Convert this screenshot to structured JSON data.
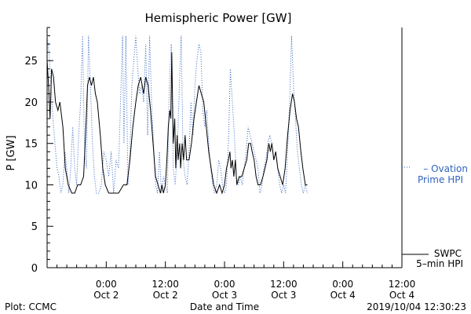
{
  "chart_data": {
    "type": "line",
    "title": "Hemispheric Power [GW]",
    "ylabel": "P [GW]",
    "xlabel": "Date and Time",
    "ylim": [
      0,
      29
    ],
    "yticks": [
      0,
      5,
      10,
      15,
      20,
      25
    ],
    "x_unit": "hours since 2019/10/01 12:00 UT",
    "xlim": [
      0,
      72
    ],
    "xticks": [
      {
        "x": 12,
        "line1": "0:00",
        "line2": "Oct 2"
      },
      {
        "x": 24,
        "line1": "12:00",
        "line2": "Oct 2"
      },
      {
        "x": 36,
        "line1": "0:00",
        "line2": "Oct 3"
      },
      {
        "x": 48,
        "line1": "12:00",
        "line2": "Oct 3"
      },
      {
        "x": 60,
        "line1": "0:00",
        "line2": "Oct 4"
      },
      {
        "x": 72,
        "line1": "12:00",
        "line2": "Oct 4"
      }
    ],
    "grid": false,
    "series": [
      {
        "name": "SWPC 5-min HPI",
        "label_line1": "SWPC",
        "label_line2": "5–min HPI",
        "color": "#000000",
        "style": "solid",
        "points": [
          [
            0,
            25
          ],
          [
            0.3,
            22
          ],
          [
            0.6,
            18
          ],
          [
            0.9,
            24
          ],
          [
            1.3,
            23
          ],
          [
            1.7,
            20
          ],
          [
            2.2,
            19
          ],
          [
            2.6,
            20
          ],
          [
            3.2,
            17
          ],
          [
            3.7,
            12
          ],
          [
            4.3,
            10
          ],
          [
            5.0,
            9
          ],
          [
            5.6,
            9
          ],
          [
            6.2,
            10
          ],
          [
            6.8,
            10
          ],
          [
            7.4,
            11
          ],
          [
            7.8,
            16
          ],
          [
            8.2,
            22
          ],
          [
            8.6,
            23
          ],
          [
            9.0,
            22
          ],
          [
            9.4,
            23
          ],
          [
            9.8,
            21
          ],
          [
            10.2,
            20
          ],
          [
            10.8,
            16
          ],
          [
            11.3,
            12
          ],
          [
            11.8,
            10
          ],
          [
            12.5,
            9
          ],
          [
            13.5,
            9
          ],
          [
            14.5,
            9
          ],
          [
            15.5,
            10
          ],
          [
            16.2,
            10
          ],
          [
            16.8,
            13
          ],
          [
            17.4,
            17
          ],
          [
            18.0,
            20
          ],
          [
            18.5,
            22
          ],
          [
            19.0,
            23
          ],
          [
            19.6,
            21
          ],
          [
            20.0,
            23
          ],
          [
            20.5,
            22
          ],
          [
            21.0,
            19
          ],
          [
            21.5,
            15
          ],
          [
            22.0,
            11
          ],
          [
            22.5,
            10
          ],
          [
            23.0,
            9
          ],
          [
            23.3,
            10
          ],
          [
            23.6,
            9
          ],
          [
            24.0,
            10
          ],
          [
            24.3,
            13
          ],
          [
            24.6,
            17
          ],
          [
            24.9,
            19
          ],
          [
            25.1,
            18
          ],
          [
            25.3,
            26
          ],
          [
            25.6,
            15
          ],
          [
            25.9,
            18
          ],
          [
            26.1,
            12
          ],
          [
            26.4,
            16
          ],
          [
            26.6,
            13
          ],
          [
            26.9,
            15
          ],
          [
            27.1,
            12
          ],
          [
            27.4,
            15
          ],
          [
            27.7,
            13
          ],
          [
            28.0,
            16
          ],
          [
            28.3,
            13
          ],
          [
            28.8,
            13
          ],
          [
            29.3,
            15
          ],
          [
            29.8,
            18
          ],
          [
            30.3,
            20
          ],
          [
            30.8,
            22
          ],
          [
            31.3,
            21
          ],
          [
            31.8,
            20
          ],
          [
            32.3,
            17
          ],
          [
            32.8,
            14
          ],
          [
            33.3,
            12
          ],
          [
            33.8,
            10
          ],
          [
            34.4,
            9
          ],
          [
            35.0,
            10
          ],
          [
            35.5,
            9
          ],
          [
            36.0,
            10
          ],
          [
            36.4,
            12
          ],
          [
            36.8,
            13
          ],
          [
            37.1,
            14
          ],
          [
            37.3,
            12
          ],
          [
            37.6,
            13
          ],
          [
            37.9,
            11
          ],
          [
            38.2,
            13
          ],
          [
            38.5,
            10
          ],
          [
            39.0,
            11
          ],
          [
            39.5,
            11
          ],
          [
            40.0,
            12
          ],
          [
            40.5,
            13
          ],
          [
            40.9,
            15
          ],
          [
            41.3,
            15
          ],
          [
            41.6,
            14
          ],
          [
            42.0,
            13
          ],
          [
            42.4,
            11
          ],
          [
            42.8,
            10
          ],
          [
            43.3,
            10
          ],
          [
            43.8,
            11
          ],
          [
            44.2,
            12
          ],
          [
            44.6,
            13
          ],
          [
            45.0,
            15
          ],
          [
            45.3,
            14
          ],
          [
            45.6,
            15
          ],
          [
            46.0,
            13
          ],
          [
            46.4,
            14
          ],
          [
            46.8,
            12
          ],
          [
            47.3,
            11
          ],
          [
            47.8,
            10
          ],
          [
            48.3,
            12
          ],
          [
            48.8,
            16
          ],
          [
            49.3,
            19
          ],
          [
            49.8,
            21
          ],
          [
            50.2,
            20
          ],
          [
            50.6,
            18
          ],
          [
            51.0,
            17
          ],
          [
            51.5,
            14
          ],
          [
            51.9,
            12
          ],
          [
            52.4,
            10
          ],
          [
            52.8,
            10
          ]
        ]
      },
      {
        "name": "Ovation Prime HPI",
        "label_line1": "– Ovation",
        "label_line2": "Prime HPI",
        "color": "#2f63c0",
        "style": "dotted",
        "points": [
          [
            0,
            28
          ],
          [
            0.4,
            26
          ],
          [
            0.8,
            22
          ],
          [
            1.2,
            18
          ],
          [
            1.6,
            15
          ],
          [
            2.0,
            12
          ],
          [
            2.4,
            11
          ],
          [
            2.8,
            9
          ],
          [
            3.2,
            10
          ],
          [
            3.6,
            14
          ],
          [
            4.0,
            12
          ],
          [
            4.4,
            9
          ],
          [
            4.8,
            12
          ],
          [
            5.2,
            17
          ],
          [
            5.6,
            12
          ],
          [
            6.0,
            10
          ],
          [
            6.4,
            16
          ],
          [
            6.8,
            20
          ],
          [
            7.2,
            28
          ],
          [
            7.6,
            14
          ],
          [
            8.0,
            12
          ],
          [
            8.4,
            28
          ],
          [
            8.8,
            22
          ],
          [
            9.2,
            15
          ],
          [
            9.6,
            11
          ],
          [
            10.0,
            9
          ],
          [
            10.5,
            9
          ],
          [
            11.0,
            10
          ],
          [
            11.5,
            14
          ],
          [
            12.0,
            13
          ],
          [
            12.5,
            11
          ],
          [
            13.0,
            14
          ],
          [
            13.5,
            9
          ],
          [
            14.0,
            13
          ],
          [
            14.5,
            12
          ],
          [
            15.0,
            22
          ],
          [
            15.3,
            28
          ],
          [
            15.6,
            15
          ],
          [
            16.0,
            28
          ],
          [
            16.4,
            10
          ],
          [
            16.8,
            14
          ],
          [
            17.2,
            22
          ],
          [
            17.6,
            25
          ],
          [
            18.0,
            28
          ],
          [
            18.4,
            24
          ],
          [
            18.8,
            21
          ],
          [
            19.2,
            22
          ],
          [
            19.6,
            20
          ],
          [
            20.0,
            27
          ],
          [
            20.4,
            16
          ],
          [
            20.8,
            28
          ],
          [
            21.2,
            20
          ],
          [
            21.6,
            15
          ],
          [
            22.0,
            10
          ],
          [
            22.4,
            9
          ],
          [
            22.8,
            14
          ],
          [
            23.2,
            9
          ],
          [
            23.6,
            11
          ],
          [
            24.0,
            10
          ],
          [
            24.4,
            9
          ],
          [
            24.8,
            22
          ],
          [
            25.2,
            27
          ],
          [
            25.6,
            12
          ],
          [
            26.0,
            10
          ],
          [
            26.4,
            14
          ],
          [
            26.8,
            21
          ],
          [
            27.2,
            28
          ],
          [
            27.6,
            13
          ],
          [
            28.0,
            11
          ],
          [
            28.4,
            10
          ],
          [
            28.8,
            14
          ],
          [
            29.2,
            20
          ],
          [
            29.6,
            16
          ],
          [
            30.0,
            22
          ],
          [
            30.4,
            25
          ],
          [
            30.8,
            27
          ],
          [
            31.2,
            26
          ],
          [
            31.6,
            19
          ],
          [
            32.0,
            17
          ],
          [
            32.4,
            19
          ],
          [
            32.8,
            15
          ],
          [
            33.2,
            12
          ],
          [
            33.6,
            10
          ],
          [
            34.0,
            9
          ],
          [
            34.4,
            10
          ],
          [
            34.8,
            13
          ],
          [
            35.2,
            12
          ],
          [
            35.6,
            10
          ],
          [
            36.0,
            9
          ],
          [
            36.4,
            10
          ],
          [
            36.8,
            15
          ],
          [
            37.2,
            24
          ],
          [
            37.6,
            20
          ],
          [
            38.0,
            16
          ],
          [
            38.4,
            11
          ],
          [
            38.8,
            10
          ],
          [
            39.2,
            11
          ],
          [
            39.6,
            10
          ],
          [
            40.0,
            12
          ],
          [
            40.4,
            14
          ],
          [
            40.8,
            17
          ],
          [
            41.2,
            16
          ],
          [
            41.6,
            15
          ],
          [
            42.0,
            14
          ],
          [
            42.4,
            13
          ],
          [
            42.8,
            12
          ],
          [
            43.2,
            9
          ],
          [
            43.6,
            10
          ],
          [
            44.0,
            12
          ],
          [
            44.4,
            13
          ],
          [
            44.8,
            15
          ],
          [
            45.2,
            16
          ],
          [
            45.6,
            15
          ],
          [
            46.0,
            13
          ],
          [
            46.4,
            14
          ],
          [
            46.8,
            12
          ],
          [
            47.2,
            10
          ],
          [
            47.6,
            9
          ],
          [
            48.0,
            10
          ],
          [
            48.4,
            9
          ],
          [
            48.8,
            14
          ],
          [
            49.2,
            20
          ],
          [
            49.6,
            28
          ],
          [
            50.0,
            22
          ],
          [
            50.4,
            18
          ],
          [
            50.8,
            14
          ],
          [
            51.2,
            12
          ],
          [
            51.6,
            10
          ],
          [
            52.0,
            9
          ],
          [
            52.4,
            10
          ],
          [
            52.8,
            9
          ]
        ]
      }
    ]
  },
  "footer": {
    "left": "Plot: CCMC",
    "right": "2019/10/04 12:30:23"
  }
}
